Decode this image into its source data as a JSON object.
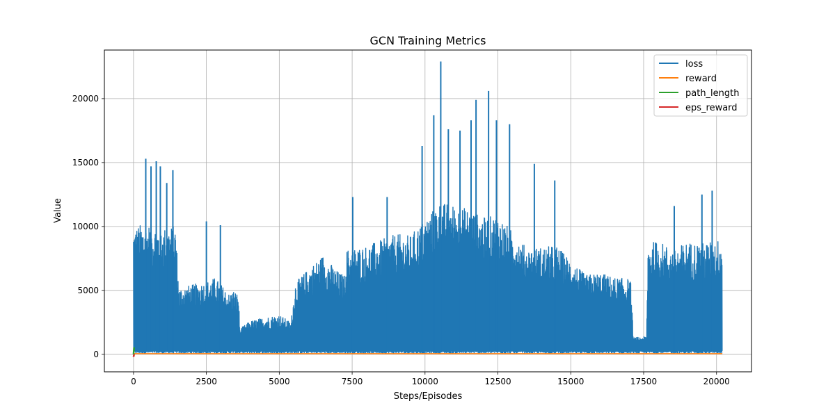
{
  "chart_data": {
    "type": "line",
    "title": "GCN Training Metrics",
    "xlabel": "Steps/Episodes",
    "ylabel": "Value",
    "xlim": [
      -1000,
      21200
    ],
    "ylim": [
      -1370,
      23800
    ],
    "xticks": [
      0,
      2500,
      5000,
      7500,
      10000,
      12500,
      15000,
      17500,
      20000
    ],
    "yticks": [
      0,
      5000,
      10000,
      15000,
      20000
    ],
    "grid": true,
    "legend_position": "upper-right",
    "series": [
      {
        "name": "loss",
        "color": "#1f77b4",
        "n_points": 20200,
        "baseline": 200,
        "spikes": [
          [
            420,
            15300
          ],
          [
            600,
            14700
          ],
          [
            780,
            15100
          ],
          [
            920,
            14700
          ],
          [
            1140,
            13400
          ],
          [
            1350,
            14400
          ],
          [
            2500,
            10400
          ],
          [
            2980,
            10100
          ],
          [
            7520,
            12300
          ],
          [
            8700,
            12300
          ],
          [
            9900,
            16300
          ],
          [
            10300,
            18700
          ],
          [
            10540,
            22900
          ],
          [
            10800,
            17600
          ],
          [
            11200,
            17500
          ],
          [
            11580,
            18300
          ],
          [
            11750,
            19900
          ],
          [
            12180,
            20600
          ],
          [
            12450,
            18300
          ],
          [
            12900,
            18000
          ],
          [
            13750,
            14900
          ],
          [
            14450,
            13600
          ],
          [
            18550,
            11600
          ],
          [
            19500,
            12500
          ],
          [
            19850,
            12800
          ]
        ],
        "envelope": [
          [
            0,
            10000
          ],
          [
            300,
            10200
          ],
          [
            600,
            10200
          ],
          [
            1000,
            9900
          ],
          [
            1450,
            10100
          ],
          [
            1550,
            5200
          ],
          [
            2500,
            5700
          ],
          [
            2800,
            6000
          ],
          [
            3300,
            4700
          ],
          [
            3400,
            5100
          ],
          [
            3600,
            4700
          ],
          [
            3650,
            2000
          ],
          [
            4000,
            2600
          ],
          [
            4500,
            2900
          ],
          [
            5000,
            3100
          ],
          [
            5400,
            2500
          ],
          [
            5550,
            5600
          ],
          [
            6000,
            6700
          ],
          [
            6500,
            7800
          ],
          [
            7000,
            6500
          ],
          [
            7250,
            6200
          ],
          [
            7300,
            8200
          ],
          [
            8000,
            8500
          ],
          [
            9000,
            9400
          ],
          [
            9500,
            9300
          ],
          [
            10000,
            10600
          ],
          [
            10500,
            11900
          ],
          [
            11000,
            11700
          ],
          [
            11500,
            11400
          ],
          [
            12000,
            10700
          ],
          [
            12500,
            10900
          ],
          [
            13000,
            9600
          ],
          [
            13500,
            8300
          ],
          [
            14000,
            8400
          ],
          [
            14500,
            8500
          ],
          [
            15000,
            7400
          ],
          [
            15500,
            6200
          ],
          [
            16000,
            6400
          ],
          [
            16500,
            6000
          ],
          [
            17050,
            5900
          ],
          [
            17150,
            1300
          ],
          [
            17600,
            1400
          ],
          [
            17650,
            8700
          ],
          [
            18000,
            8900
          ],
          [
            18500,
            8200
          ],
          [
            19000,
            8800
          ],
          [
            19500,
            8700
          ],
          [
            20000,
            8900
          ],
          [
            20150,
            9100
          ]
        ]
      },
      {
        "name": "reward",
        "color": "#ff7f0e",
        "n_points": 20200,
        "values_approx": [
          0,
          50,
          0
        ]
      },
      {
        "name": "path_length",
        "color": "#2ca02c",
        "n_points": 20,
        "values_approx": [
          0,
          550
        ]
      },
      {
        "name": "eps_reward",
        "color": "#d62728",
        "n_points": 20,
        "values_approx": [
          -200,
          0
        ]
      }
    ]
  }
}
